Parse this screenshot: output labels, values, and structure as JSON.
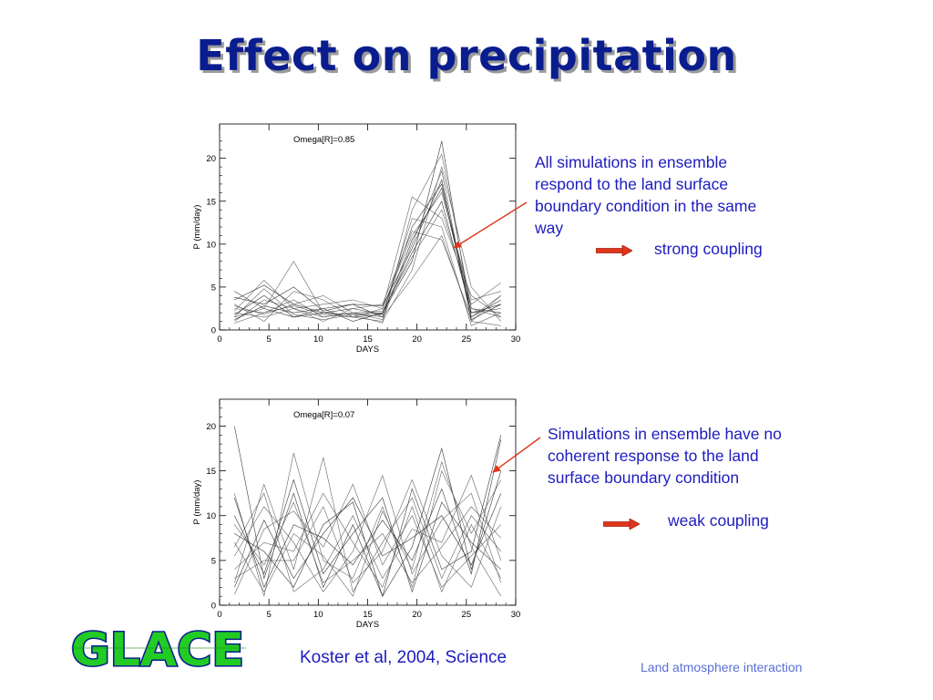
{
  "slide": {
    "title": "Effect on precipitation",
    "annotation_top": "All simulations in ensemble respond to the land surface boundary condition in the same way",
    "coupling_top": "strong coupling",
    "annotation_bottom": "Simulations in ensemble have no coherent response to the land surface boundary condition",
    "coupling_bottom": "weak coupling",
    "citation": "Koster et al, 2004, Science",
    "footer": "Land atmosphere interaction",
    "logo_text": "GLACE",
    "colors": {
      "title": "#0a1d8f",
      "title_shadow": "#9a9a9a",
      "annotation": "#1c1cbf",
      "footer": "#5a6fd6",
      "arrow": "#e0361c",
      "logo_fill": "#22cc22",
      "logo_outline": "#0a1d8f"
    }
  },
  "chart_data": [
    {
      "type": "line",
      "annotation": "Omega[R]=0.85",
      "xlabel": "DAYS",
      "ylabel": "P (mm/day)",
      "xlim": [
        0,
        30
      ],
      "ylim": [
        0,
        24
      ],
      "xticks": [
        0,
        5,
        10,
        15,
        20,
        25,
        30
      ],
      "yticks": [
        0,
        5,
        10,
        15,
        20
      ],
      "x": [
        1.5,
        4.5,
        7.5,
        10.5,
        13.5,
        16.5,
        19.5,
        22.5,
        25.5,
        28.5
      ],
      "series": [
        {
          "values": [
            3.5,
            5.2,
            3.0,
            2.0,
            1.8,
            2.0,
            8.0,
            22.0,
            1.5,
            3.5
          ]
        },
        {
          "values": [
            2.0,
            1.5,
            2.5,
            1.5,
            2.0,
            1.2,
            10.0,
            18.5,
            1.0,
            4.0
          ]
        },
        {
          "values": [
            1.5,
            2.5,
            8.0,
            2.0,
            1.5,
            2.5,
            15.5,
            13.0,
            4.0,
            1.5
          ]
        },
        {
          "values": [
            4.5,
            2.5,
            1.5,
            2.0,
            2.5,
            1.8,
            12.0,
            17.0,
            2.5,
            2.0
          ]
        },
        {
          "values": [
            1.0,
            3.5,
            2.5,
            3.0,
            3.5,
            2.5,
            11.0,
            16.0,
            3.5,
            4.5
          ]
        },
        {
          "values": [
            2.5,
            2.0,
            3.5,
            1.5,
            2.0,
            1.5,
            6.0,
            11.0,
            1.0,
            0.5
          ]
        },
        {
          "values": [
            1.2,
            2.8,
            2.0,
            2.5,
            1.0,
            2.0,
            9.0,
            15.0,
            2.0,
            3.0
          ]
        },
        {
          "values": [
            3.0,
            1.0,
            4.5,
            3.5,
            1.5,
            1.0,
            7.0,
            19.0,
            5.0,
            1.0
          ]
        },
        {
          "values": [
            2.2,
            5.8,
            2.5,
            1.0,
            2.5,
            3.0,
            11.5,
            10.5,
            1.5,
            4.0
          ]
        },
        {
          "values": [
            1.8,
            4.0,
            1.5,
            2.5,
            3.0,
            1.5,
            10.5,
            16.5,
            2.0,
            2.5
          ]
        },
        {
          "values": [
            2.8,
            1.8,
            3.0,
            4.0,
            2.0,
            2.2,
            8.5,
            14.0,
            3.0,
            5.5
          ]
        },
        {
          "values": [
            0.8,
            2.0,
            2.8,
            1.8,
            1.5,
            1.8,
            13.0,
            12.0,
            0.5,
            2.0
          ]
        },
        {
          "values": [
            3.8,
            3.0,
            5.0,
            2.2,
            3.0,
            2.8,
            9.5,
            17.5,
            1.2,
            3.0
          ]
        },
        {
          "values": [
            1.5,
            4.8,
            1.8,
            1.2,
            1.8,
            0.8,
            14.0,
            20.5,
            2.5,
            1.5
          ]
        }
      ]
    },
    {
      "type": "line",
      "annotation": "Omega[R]=0.07",
      "xlabel": "DAYS",
      "ylabel": "P (mm/day)",
      "xlim": [
        0,
        30
      ],
      "ylim": [
        0,
        23
      ],
      "xticks": [
        0,
        5,
        10,
        15,
        20,
        25,
        30
      ],
      "yticks": [
        0,
        5,
        10,
        15,
        20
      ],
      "x": [
        1.5,
        4.5,
        7.5,
        10.5,
        13.5,
        16.5,
        19.5,
        22.5,
        25.5,
        28.5
      ],
      "series": [
        {
          "values": [
            20.0,
            3.0,
            12.5,
            2.0,
            9.0,
            1.0,
            13.0,
            4.0,
            6.0,
            19.0
          ]
        },
        {
          "values": [
            12.5,
            1.0,
            17.0,
            5.0,
            3.0,
            11.0,
            2.0,
            15.0,
            8.0,
            14.0
          ]
        },
        {
          "values": [
            2.5,
            13.5,
            4.0,
            16.5,
            1.5,
            7.0,
            12.0,
            3.0,
            10.0,
            6.0
          ]
        },
        {
          "values": [
            8.0,
            6.0,
            2.0,
            9.0,
            11.5,
            1.0,
            6.5,
            17.5,
            4.0,
            15.0
          ]
        },
        {
          "values": [
            5.5,
            11.0,
            7.0,
            1.5,
            6.0,
            14.5,
            3.5,
            9.5,
            12.5,
            2.5
          ]
        },
        {
          "values": [
            1.2,
            8.5,
            10.5,
            6.5,
            13.5,
            4.5,
            10.0,
            2.0,
            5.5,
            9.0
          ]
        },
        {
          "values": [
            10.0,
            3.5,
            14.0,
            3.5,
            8.0,
            12.0,
            1.5,
            11.5,
            7.0,
            4.0
          ]
        },
        {
          "values": [
            3.0,
            5.0,
            5.0,
            11.0,
            2.5,
            6.0,
            14.0,
            5.5,
            2.0,
            11.0
          ]
        },
        {
          "values": [
            6.5,
            12.5,
            1.5,
            4.0,
            10.0,
            3.0,
            8.5,
            7.0,
            14.5,
            5.0
          ]
        },
        {
          "values": [
            12.0,
            2.0,
            9.0,
            7.5,
            4.5,
            9.5,
            5.0,
            13.0,
            3.5,
            18.5
          ]
        },
        {
          "values": [
            4.0,
            7.0,
            6.0,
            12.5,
            7.0,
            2.0,
            11.0,
            1.5,
            9.0,
            3.0
          ]
        },
        {
          "values": [
            9.0,
            4.5,
            11.5,
            2.5,
            5.0,
            8.0,
            2.5,
            6.5,
            11.0,
            7.5
          ]
        },
        {
          "values": [
            2.0,
            9.5,
            3.0,
            8.0,
            12.0,
            5.5,
            7.5,
            10.0,
            4.5,
            12.5
          ]
        },
        {
          "values": [
            7.0,
            1.5,
            8.0,
            5.5,
            1.0,
            10.5,
            4.0,
            16.0,
            6.5,
            1.0
          ]
        }
      ]
    }
  ]
}
